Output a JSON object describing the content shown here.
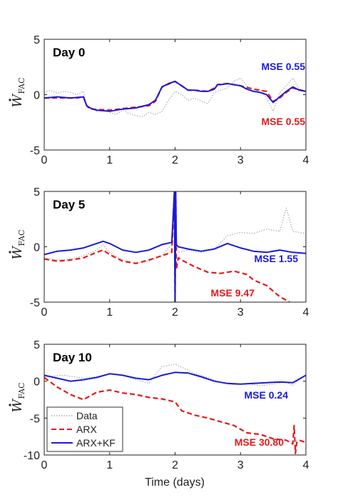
{
  "figure": {
    "xlabel": "Time (days)",
    "ylabel": "W",
    "ylabel_sub": "FAC"
  },
  "colors": {
    "data": "#b0b0b0",
    "arx": "#e41a1c",
    "arxkf": "#1a1adb"
  },
  "legend": {
    "entries": [
      "Data",
      "ARX",
      "ARX+KF"
    ]
  },
  "chart_data": [
    {
      "type": "line",
      "title": "Day 0",
      "xlim": [
        0,
        4
      ],
      "ylim": [
        -5,
        5
      ],
      "xticks": [
        0,
        1,
        2,
        3,
        4
      ],
      "yticks": [
        -5,
        0,
        5
      ],
      "annotations": [
        {
          "text": "MSE 0.55",
          "series": "ARX+KF"
        },
        {
          "text": "MSE 0.55",
          "series": "ARX"
        }
      ],
      "series": [
        {
          "name": "Data",
          "style": "dotted",
          "x": [
            0,
            0.1,
            0.2,
            0.3,
            0.4,
            0.5,
            0.6,
            0.65,
            0.7,
            0.8,
            0.9,
            1.0,
            1.1,
            1.2,
            1.3,
            1.4,
            1.5,
            1.6,
            1.7,
            1.8,
            1.9,
            2.0,
            2.1,
            2.2,
            2.3,
            2.4,
            2.5,
            2.6,
            2.7,
            2.8,
            2.9,
            3.0,
            3.1,
            3.2,
            3.3,
            3.4,
            3.5,
            3.6,
            3.7,
            3.8,
            3.9,
            4.0
          ],
          "y": [
            0.2,
            0.4,
            0.1,
            0.3,
            0.2,
            0.0,
            0.3,
            -1.0,
            -1.2,
            -1.5,
            -1.3,
            -1.6,
            -1.8,
            -1.4,
            -1.7,
            -1.9,
            -2.0,
            -1.6,
            -1.8,
            -1.5,
            -0.5,
            0.3,
            0.0,
            -0.5,
            -0.3,
            -0.6,
            -0.8,
            0.2,
            0.4,
            0.6,
            1.2,
            1.5,
            0.8,
            0.2,
            0.5,
            -0.3,
            -1.5,
            0.2,
            0.8,
            1.5,
            0.5,
            0.3
          ]
        },
        {
          "name": "ARX",
          "style": "dashed",
          "x": [
            0,
            0.5,
            0.6,
            0.65,
            0.7,
            1.0,
            1.3,
            1.6,
            1.7,
            1.8,
            2.0,
            2.2,
            2.3,
            2.5,
            2.6,
            2.65,
            2.8,
            3.0,
            3.2,
            3.4,
            3.5,
            3.6,
            3.7,
            3.8,
            4.0
          ],
          "y": [
            -0.3,
            -0.3,
            -0.2,
            -1.0,
            -1.3,
            -1.4,
            -1.2,
            -1.0,
            -0.6,
            0.7,
            1.2,
            0.4,
            0.4,
            0.3,
            0.6,
            0.9,
            1.0,
            0.8,
            0.5,
            0.3,
            -0.6,
            -0.3,
            0.2,
            0.6,
            0.3
          ]
        },
        {
          "name": "ARX+KF",
          "style": "solid",
          "x": [
            0,
            0.2,
            0.4,
            0.6,
            0.65,
            0.7,
            0.8,
            1.0,
            1.2,
            1.4,
            1.6,
            1.7,
            1.8,
            1.9,
            2.0,
            2.1,
            2.2,
            2.3,
            2.4,
            2.5,
            2.6,
            2.65,
            2.7,
            2.8,
            2.9,
            3.0,
            3.1,
            3.2,
            3.3,
            3.4,
            3.5,
            3.6,
            3.7,
            3.8,
            3.9,
            4.0
          ],
          "y": [
            -0.3,
            -0.2,
            -0.3,
            -0.2,
            -1.0,
            -1.2,
            -1.4,
            -1.5,
            -1.3,
            -1.2,
            -0.9,
            -0.5,
            0.7,
            1.0,
            1.2,
            0.8,
            0.4,
            0.4,
            0.3,
            0.3,
            0.5,
            0.9,
            0.9,
            1.0,
            0.9,
            0.8,
            0.5,
            0.3,
            0.2,
            0.0,
            -0.7,
            -0.2,
            0.3,
            0.7,
            0.4,
            0.3
          ]
        }
      ]
    },
    {
      "type": "line",
      "title": "Day 5",
      "xlim": [
        0,
        4
      ],
      "ylim": [
        -5,
        5
      ],
      "xticks": [
        0,
        1,
        2,
        3,
        4
      ],
      "yticks": [
        -5,
        0,
        5
      ],
      "annotations": [
        {
          "text": "MSE 1.55",
          "series": "ARX+KF"
        },
        {
          "text": "MSE 9.47",
          "series": "ARX"
        }
      ],
      "series": [
        {
          "name": "Data",
          "style": "dotted",
          "x": [
            0,
            0.2,
            0.4,
            0.6,
            0.8,
            0.9,
            1.0,
            1.2,
            1.4,
            1.6,
            1.8,
            2.0,
            2.05,
            2.2,
            2.4,
            2.6,
            2.8,
            3.0,
            3.2,
            3.4,
            3.6,
            3.7,
            3.8,
            4.0
          ],
          "y": [
            -1.0,
            -1.2,
            -1.1,
            -0.8,
            -0.3,
            0.2,
            -0.5,
            -1.2,
            -1.5,
            -1.3,
            -0.8,
            0.6,
            -0.5,
            -0.3,
            -0.5,
            -0.2,
            1.0,
            1.3,
            1.2,
            1.6,
            1.4,
            3.5,
            1.4,
            1.2
          ]
        },
        {
          "name": "ARX",
          "style": "dashed",
          "x": [
            0,
            0.2,
            0.4,
            0.6,
            0.8,
            0.9,
            1.0,
            1.2,
            1.4,
            1.6,
            1.8,
            1.95,
            1.99,
            2.0,
            2.01,
            2.02,
            2.05,
            2.1,
            2.3,
            2.5,
            2.7,
            2.9,
            3.1,
            3.2,
            3.4,
            3.6,
            3.75
          ],
          "y": [
            -1.1,
            -1.3,
            -1.2,
            -1.0,
            -0.5,
            -0.3,
            -0.7,
            -1.3,
            -1.5,
            -1.2,
            -0.8,
            -0.5,
            5.0,
            -5.0,
            5.0,
            -2.0,
            -1.0,
            -1.2,
            -1.8,
            -2.3,
            -2.4,
            -2.2,
            -2.5,
            -3.0,
            -3.5,
            -4.5,
            -5.0
          ]
        },
        {
          "name": "ARX+KF",
          "style": "solid",
          "x": [
            0,
            0.2,
            0.4,
            0.6,
            0.8,
            0.9,
            1.0,
            1.2,
            1.4,
            1.6,
            1.8,
            1.95,
            1.99,
            2.0,
            2.01,
            2.02,
            2.05,
            2.2,
            2.4,
            2.6,
            2.8,
            3.0,
            3.2,
            3.4,
            3.6,
            3.8,
            4.0
          ],
          "y": [
            -0.7,
            -0.4,
            -0.3,
            -0.1,
            0.3,
            0.5,
            0.3,
            -0.3,
            -0.5,
            -0.3,
            0.2,
            0.4,
            5.0,
            -5.0,
            5.0,
            0.2,
            0.0,
            -0.2,
            -0.4,
            -0.2,
            0.3,
            -0.1,
            -0.4,
            -0.5,
            -0.3,
            -0.5,
            -0.6
          ]
        }
      ]
    },
    {
      "type": "line",
      "title": "Day 10",
      "xlim": [
        0,
        4
      ],
      "ylim": [
        -10,
        5
      ],
      "xticks": [
        0,
        1,
        2,
        3,
        4
      ],
      "yticks": [
        -10,
        -5,
        0,
        5
      ],
      "annotations": [
        {
          "text": "MSE 0.24",
          "series": "ARX+KF"
        },
        {
          "text": "MSE 30.80",
          "series": "ARX"
        }
      ],
      "series": [
        {
          "name": "Data",
          "style": "dotted",
          "x": [
            0,
            0.3,
            0.6,
            0.8,
            1.0,
            1.2,
            1.4,
            1.6,
            1.8,
            2.0,
            2.2,
            2.3,
            2.5,
            2.7,
            2.9,
            3.1,
            3.3,
            3.5,
            3.7,
            3.8,
            3.9,
            4.0
          ],
          "y": [
            0.6,
            0.8,
            0.4,
            0.6,
            1.0,
            0.8,
            0.2,
            -0.3,
            2.0,
            2.3,
            1.5,
            1.0,
            0.5,
            -0.2,
            -0.5,
            -0.3,
            -0.6,
            -0.4,
            -0.1,
            -0.6,
            0.3,
            0.8
          ]
        },
        {
          "name": "ARX",
          "style": "dashed",
          "x": [
            0,
            0.2,
            0.4,
            0.6,
            0.8,
            1.0,
            1.2,
            1.4,
            1.6,
            1.8,
            2.0,
            2.1,
            2.3,
            2.5,
            2.7,
            2.9,
            3.1,
            3.3,
            3.5,
            3.7,
            3.8,
            3.82,
            3.84,
            3.86,
            3.9,
            4.0
          ],
          "y": [
            0.5,
            -0.8,
            -1.8,
            -2.5,
            -1.5,
            -1.2,
            -1.6,
            -1.8,
            -2.2,
            -2.4,
            -2.8,
            -4.0,
            -4.6,
            -5.0,
            -5.5,
            -6.0,
            -7.0,
            -7.2,
            -7.8,
            -8.0,
            -8.5,
            -6.0,
            -9.8,
            -8.3,
            -8.0,
            -8.3
          ]
        },
        {
          "name": "ARX+KF",
          "style": "solid",
          "x": [
            0,
            0.2,
            0.4,
            0.6,
            0.8,
            1.0,
            1.2,
            1.4,
            1.6,
            1.8,
            2.0,
            2.2,
            2.4,
            2.6,
            2.8,
            3.0,
            3.2,
            3.4,
            3.6,
            3.8,
            3.9,
            4.0
          ],
          "y": [
            0.8,
            0.4,
            0.0,
            0.2,
            0.5,
            1.0,
            0.8,
            0.4,
            0.2,
            0.8,
            1.2,
            1.1,
            0.6,
            0.0,
            -0.3,
            -0.4,
            -0.3,
            -0.2,
            -0.1,
            -0.2,
            0.3,
            0.8
          ]
        }
      ]
    }
  ]
}
